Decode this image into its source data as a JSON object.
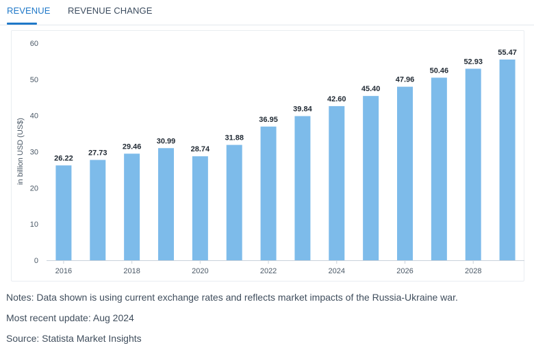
{
  "tabs": [
    {
      "label": "REVENUE",
      "active": true
    },
    {
      "label": "REVENUE CHANGE",
      "active": false
    }
  ],
  "colors": {
    "accent": "#1f78c8",
    "bar": "#7dbbea",
    "text": "#3c4a5a"
  },
  "chart_data": {
    "type": "bar",
    "title": "",
    "xlabel": "",
    "ylabel": "in billion USD (US$)",
    "categories": [
      "2016",
      "2017",
      "2018",
      "2019",
      "2020",
      "2021",
      "2022",
      "2023",
      "2024",
      "2025",
      "2026",
      "2027",
      "2028",
      "2029"
    ],
    "x_tick_labels": [
      "2016",
      "",
      "2018",
      "",
      "2020",
      "",
      "2022",
      "",
      "2024",
      "",
      "2026",
      "",
      "2028",
      ""
    ],
    "values": [
      26.22,
      27.73,
      29.46,
      30.99,
      28.74,
      31.88,
      36.95,
      39.84,
      42.6,
      45.4,
      47.96,
      50.46,
      52.93,
      55.47
    ],
    "value_labels": [
      "26.22",
      "27.73",
      "29.46",
      "30.99",
      "28.74",
      "31.88",
      "36.95",
      "39.84",
      "42.60",
      "45.40",
      "47.96",
      "50.46",
      "52.93",
      "55.47"
    ],
    "ylim": [
      0,
      60
    ],
    "yticks": [
      0,
      10,
      20,
      30,
      40,
      50,
      60
    ],
    "grid": false,
    "legend": "none"
  },
  "notes": {
    "note": "Notes: Data shown is using current exchange rates and reflects market impacts of the Russia-Ukraine war.",
    "update": "Most recent update: Aug 2024",
    "source": "Source: Statista Market Insights"
  }
}
